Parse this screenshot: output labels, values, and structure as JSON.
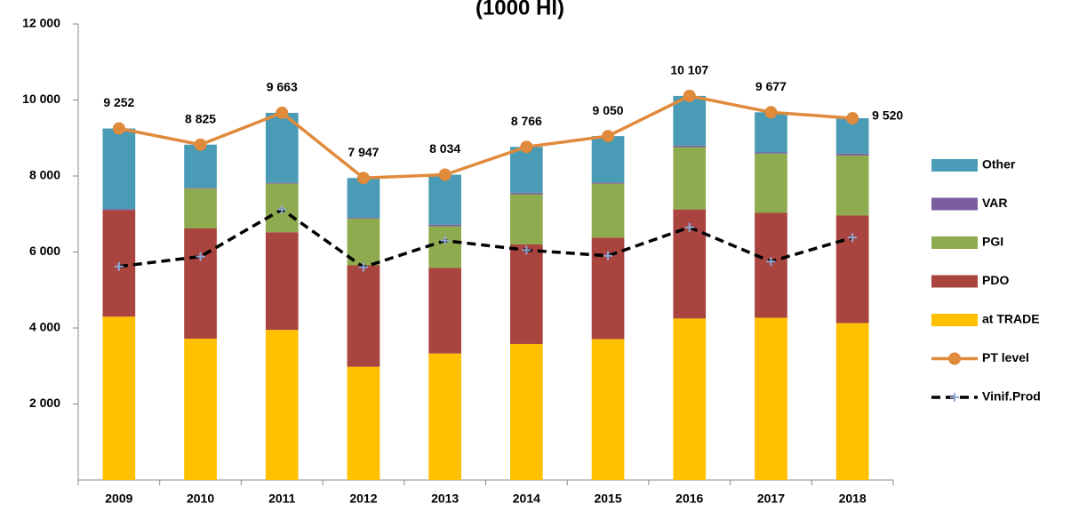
{
  "chart_data": {
    "type": "bar",
    "title": "(1000 Hl)",
    "categories": [
      "2009",
      "2010",
      "2011",
      "2012",
      "2013",
      "2014",
      "2015",
      "2016",
      "2017",
      "2018"
    ],
    "ylim": [
      0,
      12000
    ],
    "yticks": [
      {
        "value": 2000,
        "label": "2 000"
      },
      {
        "value": 4000,
        "label": "4 000"
      },
      {
        "value": 6000,
        "label": "6 000"
      },
      {
        "value": 8000,
        "label": "8 000"
      },
      {
        "value": 10000,
        "label": "10 000"
      },
      {
        "value": 12000,
        "label": "12 000"
      }
    ],
    "series": [
      {
        "name": "at TRADE",
        "type": "bar",
        "color": "#ffc000",
        "values": [
          4300,
          3720,
          3950,
          2980,
          3330,
          3580,
          3710,
          4250,
          4270,
          4130
        ]
      },
      {
        "name": "PDO",
        "type": "bar",
        "color": "#a9443f",
        "values": [
          2800,
          2900,
          2570,
          2670,
          2250,
          2620,
          2670,
          2870,
          2760,
          2830
        ]
      },
      {
        "name": "PGI",
        "type": "bar",
        "color": "#8eab4f",
        "values": [
          0,
          1050,
          1280,
          1230,
          1100,
          1320,
          1420,
          1640,
          1560,
          1580
        ]
      },
      {
        "name": "VAR",
        "type": "bar",
        "color": "#7a5e9e",
        "values": [
          30,
          20,
          20,
          20,
          40,
          40,
          30,
          40,
          30,
          50
        ]
      },
      {
        "name": "Other",
        "type": "bar",
        "color": "#4a9bb5",
        "values": [
          2120,
          1135,
          1843,
          1047,
          1314,
          1206,
          1220,
          1307,
          1057,
          930
        ]
      },
      {
        "name": "PT level",
        "type": "line",
        "color": "#e08a3c",
        "marker": "circle",
        "values": [
          9252,
          8825,
          9663,
          7947,
          8034,
          8766,
          9050,
          10107,
          9677,
          9520
        ],
        "value_labels": [
          "9 252",
          "8 825",
          "9 663",
          "7 947",
          "8 034",
          "8 766",
          "9 050",
          "10 107",
          "9 677",
          "9 520"
        ]
      },
      {
        "name": "Vinif.Prod",
        "type": "line",
        "color": "#000000",
        "dashed": true,
        "marker": "plus",
        "values": [
          5620,
          5880,
          7120,
          5600,
          6300,
          6050,
          5900,
          6650,
          5750,
          6380
        ]
      }
    ]
  }
}
